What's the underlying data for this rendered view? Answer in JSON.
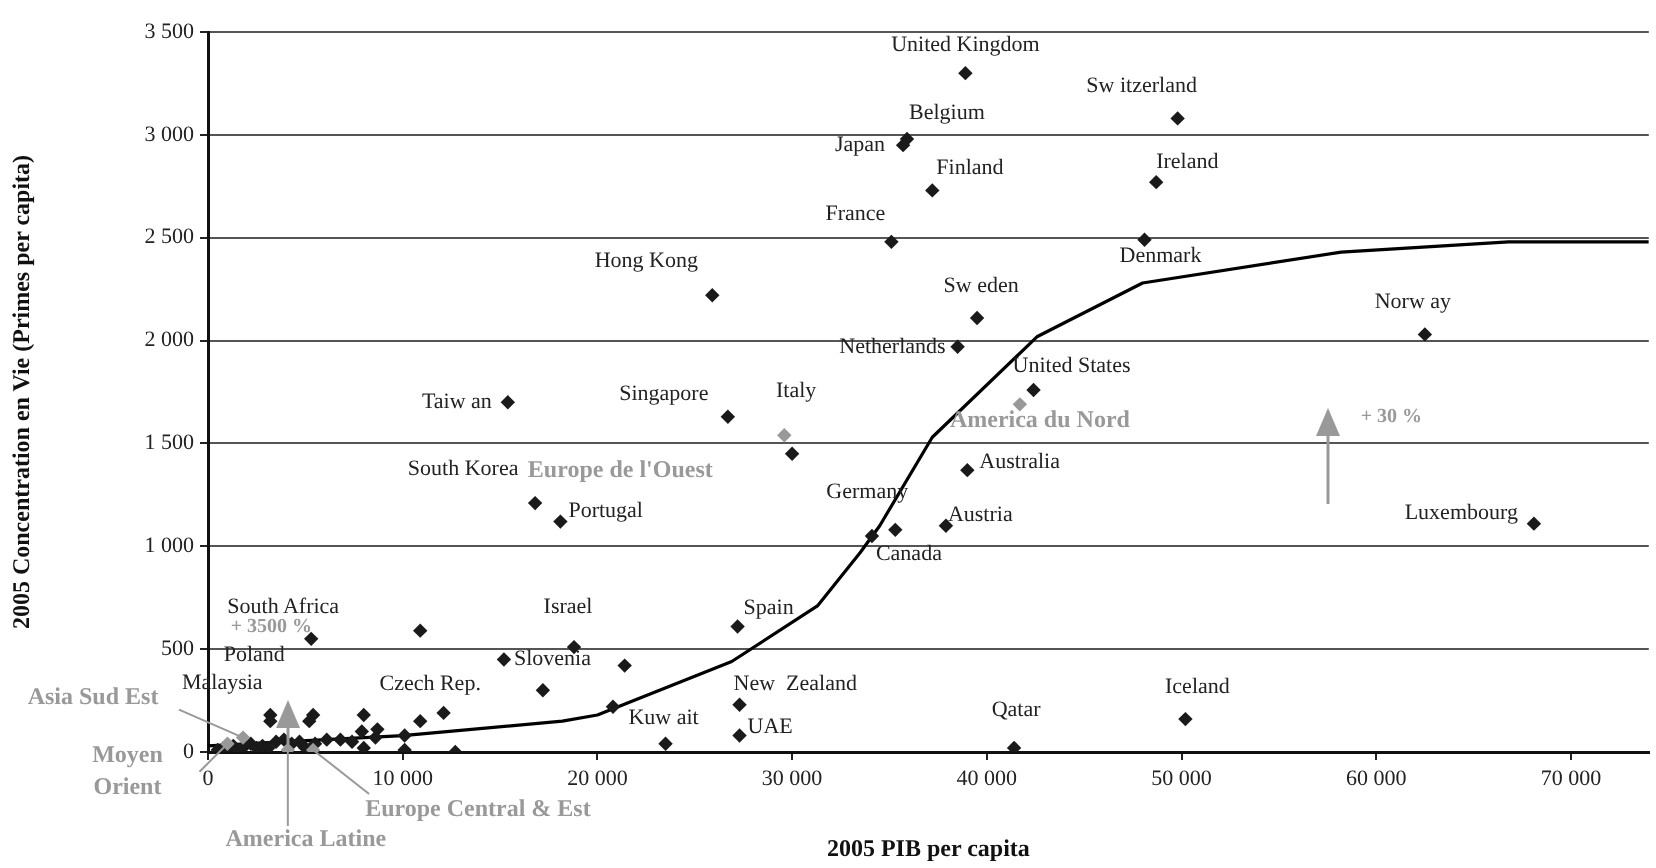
{
  "chart_data": {
    "type": "scatter",
    "xlabel": "2005 PIB per capita",
    "ylabel": "2005 Concentration en Vie (Primes per capita)",
    "xlim": [
      0,
      74000
    ],
    "ylim": [
      0,
      3500
    ],
    "xticks": [
      0,
      {
        "value": 10000,
        "label": "10 000"
      },
      {
        "value": 20000,
        "label": "20 000"
      },
      {
        "value": 30000,
        "label": "30 000"
      },
      {
        "value": 40000,
        "label": "40 000"
      },
      {
        "value": 50000,
        "label": "50 000"
      },
      {
        "value": 60000,
        "label": "60 000"
      },
      {
        "value": 70000,
        "label": "70 000"
      }
    ],
    "yticks": [
      0,
      500,
      {
        "value": 1000,
        "label": "1 000"
      },
      {
        "value": 1500,
        "label": "1 500"
      },
      {
        "value": 2000,
        "label": "2 000"
      },
      {
        "value": 2500,
        "label": "2 500"
      },
      {
        "value": 3000,
        "label": "3 000"
      },
      {
        "value": 3500,
        "label": "3 500"
      }
    ],
    "grid": "y",
    "marker": "diamond",
    "series": [
      {
        "color": "#1a1a1a",
        "x": [
          38900,
          49800,
          35900,
          35700,
          37200,
          48700,
          35100,
          48100,
          25900,
          39500,
          38500,
          62500,
          15400,
          26700,
          30000,
          42400,
          39000,
          16800,
          18100,
          35300,
          34100,
          37900,
          68100,
          5300,
          18800,
          15200,
          17200,
          27200,
          27300,
          23500,
          27300,
          41400,
          50200,
          3200,
          3200,
          10900,
          12100,
          10900,
          10100,
          10100,
          12700,
          8000,
          8700,
          8600,
          7900,
          7400,
          8000,
          6100,
          5400,
          5200,
          20800,
          21400,
          500,
          800,
          1000,
          1300,
          1600,
          1900,
          2200,
          2500,
          2800,
          3100,
          3500,
          3900,
          4300,
          4700,
          5000,
          5500,
          6800
        ],
        "values": [
          3300,
          3080,
          2980,
          2950,
          2730,
          2770,
          2480,
          2490,
          2220,
          2110,
          1970,
          2030,
          1700,
          1630,
          1450,
          1760,
          1370,
          1210,
          1120,
          1080,
          1050,
          1100,
          1110,
          550,
          510,
          450,
          300,
          610,
          230,
          40,
          80,
          20,
          160,
          180,
          150,
          590,
          190,
          150,
          80,
          10,
          0,
          180,
          110,
          70,
          100,
          50,
          20,
          60,
          180,
          150,
          220,
          420,
          10,
          20,
          20,
          30,
          10,
          30,
          40,
          20,
          30,
          20,
          50,
          60,
          40,
          50,
          20,
          40,
          60
        ]
      },
      {
        "name": "Europe de l'Ouest",
        "color": "#999999",
        "x": [
          29600
        ],
        "values": [
          1540
        ]
      },
      {
        "name": "America du Nord",
        "color": "#999999",
        "x": [
          41700
        ],
        "values": [
          1690
        ]
      },
      {
        "name": "Asia Sud Est",
        "color": "#999999",
        "x": [
          1800
        ],
        "values": [
          70
        ]
      },
      {
        "name": "Moyen Orient",
        "color": "#999999",
        "x": [
          1000
        ],
        "values": [
          40
        ]
      },
      {
        "name": "Europe Central & Est",
        "color": "#999999",
        "x": [
          5400
        ],
        "values": [
          10
        ]
      },
      {
        "name": "America Latine",
        "color": "#999999",
        "x": [
          4100
        ],
        "values": [
          10
        ]
      },
      {
        "type": "line",
        "marker": "none",
        "color": "#000000",
        "x": [
          0,
          10000,
          18200,
          20000,
          26900,
          31300,
          33500,
          34500,
          37200,
          42600,
          48000,
          58200,
          66800,
          74000
        ],
        "values": [
          30,
          80,
          150,
          180,
          440,
          710,
          970,
          1100,
          1530,
          2020,
          2280,
          2430,
          2480,
          2480
        ]
      }
    ],
    "annotations": [
      {
        "text": "United Kingdom",
        "x": 38900,
        "y": 3300
      },
      {
        "text": "Sw itzerland",
        "x": 49800,
        "y": 3080
      },
      {
        "text": "Belgium",
        "x": 35900,
        "y": 2980
      },
      {
        "text": "Japan",
        "x": 35700,
        "y": 2950
      },
      {
        "text": "Finland",
        "x": 37200,
        "y": 2730
      },
      {
        "text": "Ireland",
        "x": 48700,
        "y": 2770
      },
      {
        "text": "France",
        "x": 35100,
        "y": 2480
      },
      {
        "text": "Denmark",
        "x": 48100,
        "y": 2490
      },
      {
        "text": "Hong Kong",
        "x": 25900,
        "y": 2220
      },
      {
        "text": "Sw eden",
        "x": 39500,
        "y": 2110
      },
      {
        "text": "Netherlands",
        "x": 38500,
        "y": 1970
      },
      {
        "text": "Norw ay",
        "x": 62500,
        "y": 2030
      },
      {
        "text": "Taiw an",
        "x": 15400,
        "y": 1700
      },
      {
        "text": "Singapore",
        "x": 26700,
        "y": 1630
      },
      {
        "text": "Italy",
        "x": 30000,
        "y": 1450
      },
      {
        "text": "United States",
        "x": 42400,
        "y": 1760
      },
      {
        "text": "Australia",
        "x": 39000,
        "y": 1370
      },
      {
        "text": "South Korea",
        "x": 16800,
        "y": 1210
      },
      {
        "text": "Portugal",
        "x": 18100,
        "y": 1120
      },
      {
        "text": "Germany",
        "x": 35300,
        "y": 1080
      },
      {
        "text": "Canada",
        "x": 34100,
        "y": 1050
      },
      {
        "text": "Austria",
        "x": 37900,
        "y": 1100
      },
      {
        "text": "Luxembourg",
        "x": 68100,
        "y": 1110
      },
      {
        "text": "South Africa",
        "x": 5300,
        "y": 550
      },
      {
        "text": "Israel",
        "x": 18800,
        "y": 510
      },
      {
        "text": "Slovenia",
        "x": 15200,
        "y": 450
      },
      {
        "text": "Czech Rep.",
        "x": 17200,
        "y": 300
      },
      {
        "text": "Spain",
        "x": 27200,
        "y": 610
      },
      {
        "text": "New  Zealand",
        "x": 27300,
        "y": 230
      },
      {
        "text": "Kuw ait",
        "x": 23500,
        "y": 40
      },
      {
        "text": "UAE",
        "x": 27300,
        "y": 80
      },
      {
        "text": "Qatar",
        "x": 41400,
        "y": 20
      },
      {
        "text": "Iceland",
        "x": 50200,
        "y": 160
      },
      {
        "text": "Poland",
        "x": 3200,
        "y": 180
      },
      {
        "text": "Malaysia",
        "x": 3200,
        "y": 150
      },
      "+ 3500 %",
      "+ 30 %"
    ]
  }
}
